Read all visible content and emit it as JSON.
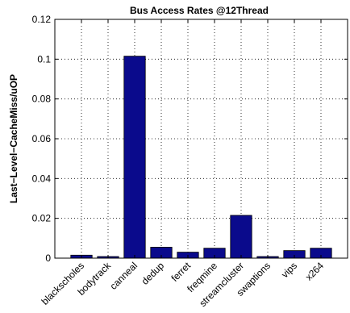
{
  "chart_data": {
    "type": "bar",
    "title": "Bus Access Rates @12Thread",
    "xlabel": "",
    "ylabel": "Last−Level−CacheMiss/uOP",
    "categories": [
      "blackscholes",
      "bodytrack",
      "canneal",
      "dedup",
      "ferret",
      "freqmine",
      "streamcluster",
      "swaptions",
      "vips",
      "x264"
    ],
    "values": [
      0.0015,
      0.0008,
      0.1015,
      0.0055,
      0.003,
      0.005,
      0.0215,
      0.0008,
      0.0038,
      0.005
    ],
    "ylim": [
      0,
      0.12
    ],
    "yticks": [
      "0",
      "0.02",
      "0.04",
      "0.06",
      "0.08",
      "0.1",
      "0.12"
    ],
    "grid": true,
    "bar_color": "#0a0a8c"
  }
}
